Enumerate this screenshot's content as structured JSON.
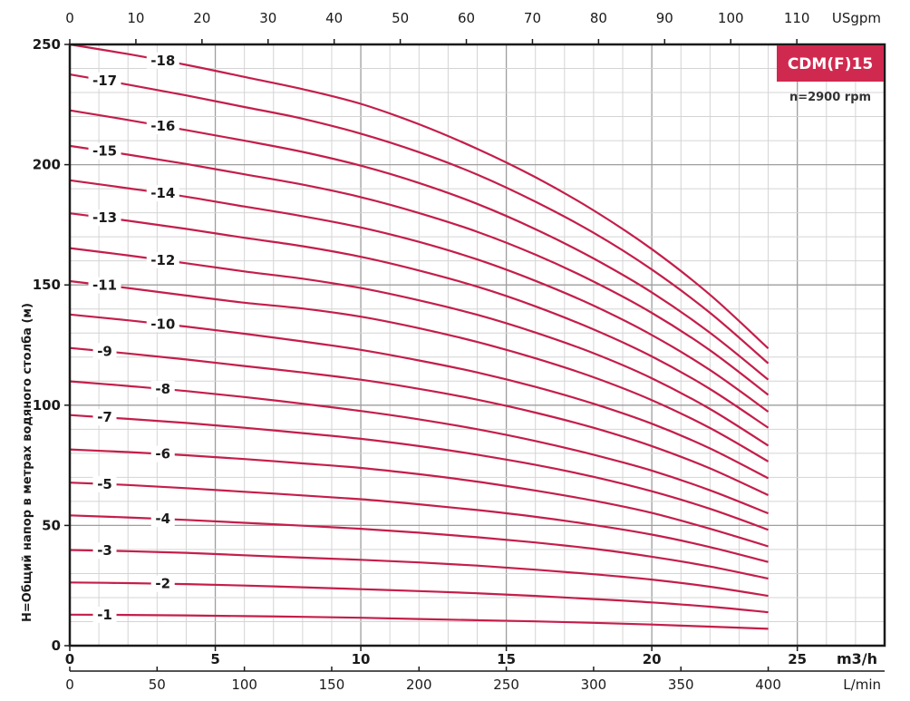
{
  "chart_data": {
    "type": "line",
    "title": "CDM(F)15",
    "subtitle": "n=2900 rpm",
    "accent_color": "#d0294f",
    "curve_color": "#c41e4a",
    "ylabel": "H=Общий напор в метрах водяного столба (м)",
    "ylim": [
      0,
      250
    ],
    "y_ticks": [
      0,
      50,
      100,
      150,
      200,
      250
    ],
    "x_primary": {
      "unit": "m3/h",
      "lim": [
        0,
        25
      ],
      "ticks": [
        0,
        5,
        10,
        15,
        20,
        25
      ]
    },
    "x_top": {
      "unit": "USgpm",
      "ticks": [
        0,
        10,
        20,
        30,
        40,
        50,
        60,
        70,
        80,
        90,
        100,
        110
      ]
    },
    "x_bottom": {
      "unit": "L/min",
      "ticks": [
        0,
        50,
        100,
        150,
        200,
        250,
        300,
        350,
        400
      ]
    },
    "grid": true,
    "x": [
      0,
      2,
      4,
      6,
      8,
      10,
      12,
      14,
      16,
      18,
      20,
      22,
      24
    ],
    "series": [
      {
        "name": "-1",
        "label_x": 1.2,
        "values": [
          12.9,
          12.8,
          12.6,
          12.3,
          12.0,
          11.6,
          11.1,
          10.6,
          10.1,
          9.5,
          8.8,
          7.9,
          7.0
        ]
      },
      {
        "name": "-2",
        "label_x": 3.2,
        "values": [
          26.3,
          26.0,
          25.6,
          25.0,
          24.3,
          23.5,
          22.7,
          21.8,
          20.7,
          19.4,
          18.0,
          16.2,
          13.9
        ]
      },
      {
        "name": "-3",
        "label_x": 1.2,
        "values": [
          39.8,
          39.3,
          38.6,
          37.6,
          36.6,
          35.7,
          34.6,
          33.3,
          31.6,
          29.7,
          27.5,
          24.5,
          20.7
        ]
      },
      {
        "name": "-4",
        "label_x": 3.2,
        "values": [
          54.2,
          53.3,
          52.3,
          51.1,
          49.9,
          48.6,
          47.0,
          45.1,
          42.9,
          40.3,
          37.0,
          32.9,
          27.9
        ]
      },
      {
        "name": "-5",
        "label_x": 1.2,
        "values": [
          67.8,
          66.8,
          65.5,
          64.0,
          62.5,
          60.9,
          58.8,
          56.4,
          53.6,
          50.2,
          46.2,
          41.0,
          34.8
        ]
      },
      {
        "name": "-6",
        "label_x": 3.2,
        "values": [
          81.6,
          80.5,
          79.2,
          77.6,
          75.8,
          73.9,
          71.3,
          68.2,
          64.5,
          60.3,
          55.2,
          48.6,
          41.3
        ]
      },
      {
        "name": "-7",
        "label_x": 1.2,
        "values": [
          95.9,
          94.3,
          92.6,
          90.6,
          88.4,
          86.0,
          83.0,
          79.4,
          75.2,
          70.2,
          64.2,
          56.9,
          48.2
        ]
      },
      {
        "name": "-8",
        "label_x": 3.2,
        "values": [
          109.9,
          108.0,
          105.9,
          103.4,
          100.6,
          97.6,
          94.1,
          90.0,
          85.1,
          79.4,
          72.8,
          64.6,
          55.0
        ]
      },
      {
        "name": "-9",
        "label_x": 1.2,
        "values": [
          123.8,
          121.5,
          119.0,
          116.3,
          113.6,
          110.6,
          106.8,
          102.3,
          96.9,
          90.6,
          83.0,
          73.7,
          62.6
        ]
      },
      {
        "name": "-10",
        "label_x": 3.2,
        "values": [
          137.7,
          135.3,
          132.7,
          129.7,
          126.5,
          123.0,
          118.6,
          113.6,
          107.6,
          100.6,
          92.3,
          82.0,
          69.6
        ]
      },
      {
        "name": "-11",
        "label_x": 1.2,
        "values": [
          151.6,
          148.7,
          145.6,
          142.6,
          140.2,
          136.8,
          132.0,
          126.3,
          119.5,
          111.6,
          102.1,
          90.5,
          76.6
        ]
      },
      {
        "name": "-12",
        "label_x": 3.2,
        "values": [
          165.3,
          162.3,
          159.0,
          155.6,
          152.6,
          148.7,
          143.6,
          137.6,
          130.2,
          121.6,
          111.2,
          98.4,
          83.2
        ]
      },
      {
        "name": "-13",
        "label_x": 1.2,
        "values": [
          179.8,
          176.7,
          173.3,
          169.6,
          166.1,
          161.7,
          156.0,
          149.3,
          141.1,
          131.5,
          120.3,
          106.7,
          90.6
        ]
      },
      {
        "name": "-14",
        "label_x": 3.2,
        "values": [
          193.5,
          190.2,
          186.7,
          182.6,
          178.6,
          173.9,
          167.9,
          160.6,
          151.7,
          141.4,
          129.2,
          114.6,
          97.3
        ]
      },
      {
        "name": "-15",
        "label_x": 1.2,
        "values": [
          207.8,
          204.2,
          200.3,
          196.0,
          191.7,
          186.5,
          179.9,
          172.1,
          162.6,
          151.4,
          138.4,
          122.8,
          104.3
        ]
      },
      {
        "name": "-16",
        "label_x": 3.2,
        "values": [
          222.6,
          218.6,
          214.4,
          210.0,
          205.3,
          199.6,
          192.4,
          183.7,
          173.2,
          161.0,
          146.9,
          130.1,
          110.6
        ]
      },
      {
        "name": "-17",
        "label_x": 1.2,
        "values": [
          237.5,
          233.3,
          228.8,
          224.0,
          219.1,
          212.9,
          205.2,
          195.9,
          184.6,
          171.7,
          156.4,
          138.4,
          117.4
        ]
      },
      {
        "name": "-18",
        "label_x": 3.2,
        "values": [
          250.0,
          246.0,
          241.5,
          236.5,
          231.4,
          225.3,
          216.8,
          206.6,
          194.8,
          181.0,
          164.9,
          145.9,
          123.6
        ]
      }
    ]
  }
}
